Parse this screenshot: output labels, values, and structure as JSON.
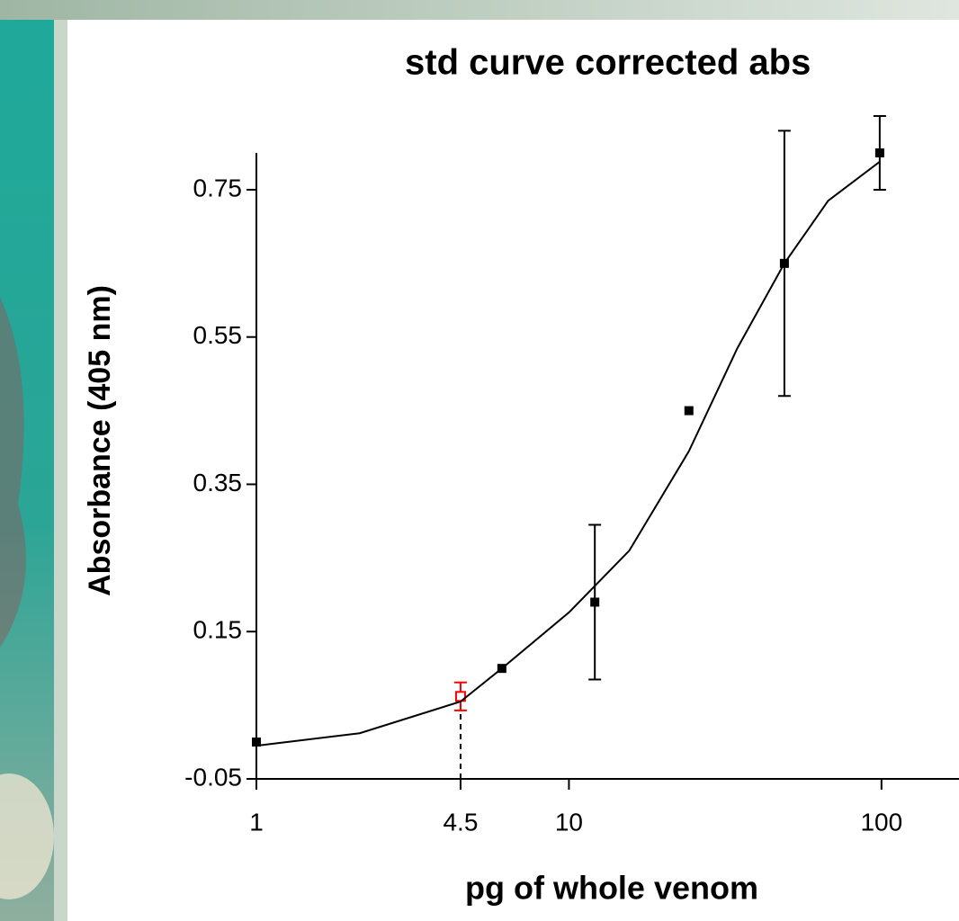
{
  "chart_data": {
    "type": "scatter",
    "title": "std curve corrected abs",
    "x_label": "pg of whole venom",
    "y_label": "Absorbance (405 nm)",
    "x_log": true,
    "xlim": [
      1,
      177
    ],
    "xticks": [
      1,
      4.5,
      10,
      100
    ],
    "ylim": [
      -0.05,
      0.8
    ],
    "yticks": [
      0.75,
      0.55,
      0.35,
      0.15,
      -0.05
    ],
    "series": [
      {
        "type": "scatter",
        "marker": "square-filled",
        "color": "#000000",
        "x": [
          1,
          6.1,
          12.1,
          24.2,
          48.9,
          98.7
        ],
        "values": [
          0.0,
          0.1,
          0.19,
          0.45,
          0.65,
          0.8
        ],
        "errors": [
          null,
          null,
          0.105,
          null,
          0.18,
          0.05
        ]
      },
      {
        "type": "scatter",
        "marker": "square-open",
        "color": "#ff0000",
        "drop_line": true,
        "x": [
          4.5
        ],
        "values": [
          0.062
        ],
        "errors": [
          0.019
        ]
      },
      {
        "type": "line",
        "color": "#000000",
        "x": [
          1,
          2.14,
          4.5,
          6.1,
          10,
          15.6,
          24.2,
          34.6,
          48.9,
          67.5,
          98.7
        ],
        "values": [
          -0.005,
          0.012,
          0.055,
          0.1,
          0.176,
          0.26,
          0.395,
          0.535,
          0.65,
          0.735,
          0.788
        ]
      }
    ]
  }
}
